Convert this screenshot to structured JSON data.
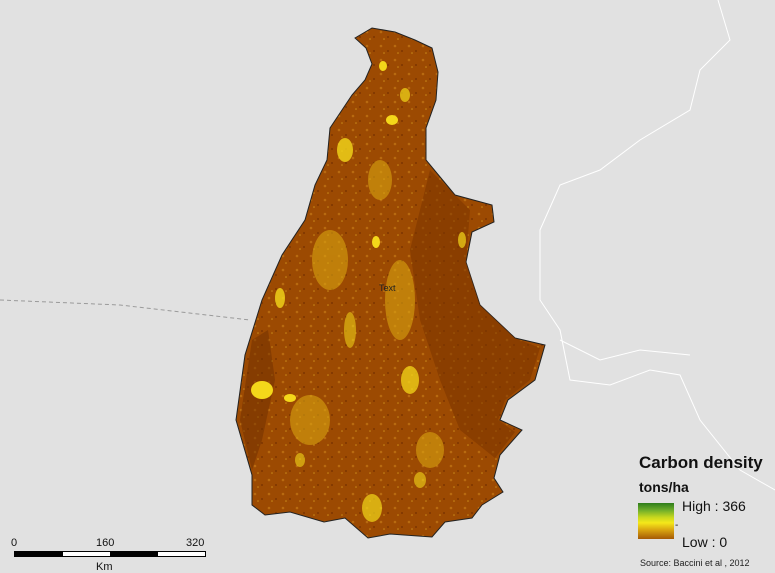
{
  "legend": {
    "title": "Carbon density",
    "unit": "tons/ha",
    "high_label": "High : 366",
    "low_label": "Low : 0",
    "mid_tick": "-",
    "ramp_colors": [
      "#2e7d1c",
      "#6fae2a",
      "#c8d81e",
      "#f4e81a",
      "#d9a410",
      "#a55a05"
    ]
  },
  "map": {
    "label": "Text",
    "colors": {
      "background": "#e1e1e1",
      "region_fill": "#9c4a02",
      "region_dark": "#7c3500",
      "highlight": "#f4d81a",
      "borders": "#ffffff"
    }
  },
  "scalebar": {
    "ticks": [
      "0",
      "160",
      "320"
    ],
    "unit": "Km"
  },
  "source": "Source: Baccini et al , 2012"
}
